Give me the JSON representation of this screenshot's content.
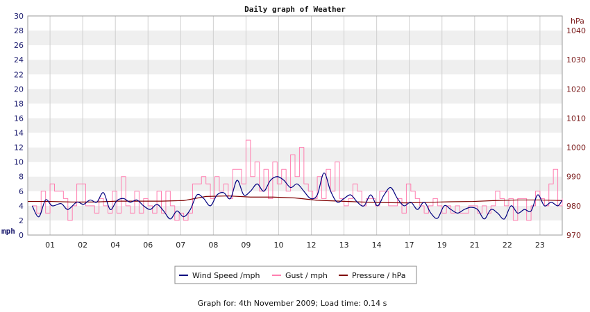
{
  "chart_data": {
    "type": "line",
    "title": "Daily graph of Weather",
    "y_left": {
      "unit": "mph",
      "min": 0,
      "max": 30,
      "ticks": [
        0,
        2,
        4,
        6,
        8,
        10,
        12,
        14,
        16,
        18,
        20,
        22,
        24,
        26,
        28,
        30
      ]
    },
    "y_right": {
      "unit": "hPa",
      "min": 970,
      "max": 1045,
      "ticks": [
        970,
        980,
        990,
        1000,
        1010,
        1020,
        1030,
        1040
      ]
    },
    "x_ticks": [
      "01",
      "02",
      "04",
      "06",
      "07",
      "08",
      "09",
      "10",
      "12",
      "13",
      "14",
      "17",
      "19",
      "21",
      "22",
      "23"
    ],
    "grid": true,
    "legend_position": "bottom-center",
    "colors": {
      "wind": "#00007f",
      "gust": "#ff7fb0",
      "pressure": "#7f0000"
    },
    "series": [
      {
        "name": "Wind Speed /mph",
        "key": "wind",
        "axis": "left",
        "style": "smooth",
        "x": [
          0.2,
          0.5,
          0.8,
          1.1,
          1.5,
          1.8,
          2.2,
          2.5,
          2.8,
          3.1,
          3.4,
          3.7,
          4.0,
          4.3,
          4.6,
          4.9,
          5.2,
          5.5,
          5.8,
          6.1,
          6.4,
          6.7,
          7.0,
          7.3,
          7.6,
          7.9,
          8.2,
          8.5,
          8.8,
          9.1,
          9.4,
          9.7,
          10.0,
          10.3,
          10.6,
          10.9,
          11.2,
          11.5,
          11.8,
          12.1,
          12.4,
          12.7,
          13.0,
          13.3,
          13.6,
          13.9,
          14.2,
          14.5,
          14.8,
          15.1,
          15.4,
          15.7,
          16.0,
          16.3,
          16.6,
          16.9,
          17.2,
          17.5,
          17.8,
          18.1,
          18.4,
          18.7,
          19.0,
          19.3,
          19.6,
          19.9,
          20.2,
          20.5,
          20.8,
          21.1,
          21.4,
          21.7,
          22.0,
          22.3,
          22.6,
          22.9,
          23.2,
          23.5,
          23.8,
          24.0
        ],
        "values": [
          4,
          2.5,
          4.8,
          4,
          4.3,
          3.5,
          4.5,
          4.2,
          4.8,
          4.5,
          5.8,
          3.5,
          4.7,
          5,
          4.5,
          4.8,
          4,
          3.5,
          4.2,
          3.3,
          2.2,
          3.3,
          2.5,
          3.5,
          5.5,
          5,
          4,
          5.5,
          5.8,
          5,
          7.5,
          5.5,
          6,
          7,
          6,
          7.5,
          8,
          7.5,
          6.5,
          7,
          6,
          5,
          5.5,
          8.5,
          6,
          4.5,
          5,
          5.5,
          4.5,
          4,
          5.5,
          4,
          5.5,
          6.5,
          5,
          4,
          4.5,
          3.5,
          4.5,
          3,
          2.3,
          4,
          3.5,
          3,
          3.5,
          3.8,
          3.5,
          2.2,
          3.5,
          3,
          2.2,
          4,
          3,
          3.5,
          3.3,
          5.5,
          4,
          4.5,
          4,
          4.8
        ]
      },
      {
        "name": "Gust / mph",
        "key": "gust",
        "axis": "left",
        "style": "step",
        "x": [
          0.2,
          0.4,
          0.6,
          0.8,
          1.0,
          1.2,
          1.4,
          1.6,
          1.8,
          2.0,
          2.2,
          2.4,
          2.6,
          2.8,
          3.0,
          3.2,
          3.4,
          3.6,
          3.8,
          4.0,
          4.2,
          4.4,
          4.6,
          4.8,
          5.0,
          5.2,
          5.4,
          5.6,
          5.8,
          6.0,
          6.2,
          6.4,
          6.6,
          6.8,
          7.0,
          7.2,
          7.4,
          7.6,
          7.8,
          8.0,
          8.2,
          8.4,
          8.6,
          8.8,
          9.0,
          9.2,
          9.4,
          9.6,
          9.8,
          10.0,
          10.2,
          10.4,
          10.6,
          10.8,
          11.0,
          11.2,
          11.4,
          11.6,
          11.8,
          12.0,
          12.2,
          12.4,
          12.6,
          12.8,
          13.0,
          13.2,
          13.4,
          13.6,
          13.8,
          14.0,
          14.2,
          14.4,
          14.6,
          14.8,
          15.0,
          15.2,
          15.4,
          15.6,
          15.8,
          16.0,
          16.2,
          16.4,
          16.6,
          16.8,
          17.0,
          17.2,
          17.4,
          17.6,
          17.8,
          18.0,
          18.2,
          18.4,
          18.6,
          18.8,
          19.0,
          19.2,
          19.4,
          19.6,
          19.8,
          20.0,
          20.2,
          20.4,
          20.6,
          20.8,
          21.0,
          21.2,
          21.4,
          21.6,
          21.8,
          22.0,
          22.2,
          22.4,
          22.6,
          22.8,
          23.0,
          23.2,
          23.4,
          23.6,
          23.8,
          24.0
        ],
        "values": [
          4,
          3,
          6,
          3,
          7,
          6,
          6,
          5,
          2,
          4,
          7,
          7,
          4,
          4,
          3,
          5,
          4,
          3,
          6,
          3,
          8,
          4,
          3,
          6,
          3,
          5,
          4,
          3,
          6,
          3,
          6,
          4,
          2,
          3,
          2,
          3,
          7,
          7,
          8,
          7,
          5,
          8,
          6,
          7,
          5,
          9,
          9,
          7,
          13,
          8,
          10,
          6,
          9,
          5,
          10,
          7,
          9,
          6,
          11,
          8,
          12,
          7,
          6,
          5,
          8,
          5,
          9,
          6,
          10,
          5,
          4,
          5,
          7,
          6,
          4,
          5,
          5,
          4,
          6,
          6,
          4,
          4,
          5,
          3,
          7,
          6,
          5,
          4,
          3,
          4,
          5,
          4,
          3,
          4,
          3,
          4,
          3,
          3,
          4,
          4,
          3,
          4,
          3,
          4,
          6,
          5,
          4,
          5,
          2,
          5,
          5,
          2,
          4,
          6,
          5,
          4,
          7,
          9,
          4,
          5
        ]
      },
      {
        "name": "Pressure / hPa",
        "key": "pressure",
        "axis": "right",
        "style": "line",
        "x": [
          0,
          1,
          2,
          3,
          4,
          5,
          6,
          7,
          8,
          9,
          10,
          11,
          12,
          13,
          14,
          15,
          16,
          17,
          18,
          19,
          20,
          21,
          22,
          23,
          24
        ],
        "values": [
          981.5,
          981.5,
          981.3,
          981.3,
          981.6,
          981.6,
          981.6,
          981.8,
          983.2,
          983.4,
          983,
          983,
          982.7,
          981.9,
          981.6,
          981.3,
          981.1,
          981,
          981.2,
          981.4,
          981.5,
          981.8,
          982,
          982,
          981.8
        ]
      }
    ],
    "footer": "Graph for: 4th November 2009; Load time: 0.14 s"
  }
}
